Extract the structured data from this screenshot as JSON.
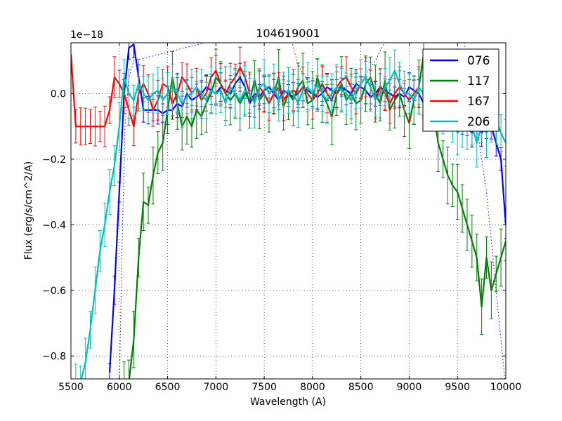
{
  "chart_data": {
    "type": "line",
    "title": "104619001",
    "xlabel": "Wavelength (A)",
    "ylabel": "Flux (erg/s/cm^2/A)",
    "offset_label": "1e−18",
    "xlim": [
      5500,
      10000
    ],
    "ylim": [
      -0.87,
      0.155
    ],
    "xticks": [
      5500,
      6000,
      6500,
      7000,
      7500,
      8000,
      8500,
      9000,
      9500,
      10000
    ],
    "yticks": [
      0.0,
      -0.2,
      -0.4,
      -0.6,
      -0.8
    ],
    "ytick_labels": [
      "0.0",
      "−0.2",
      "−0.4",
      "−0.6",
      "−0.8"
    ],
    "grid": true,
    "legend_position": "top-right",
    "series": [
      {
        "name": "076",
        "color": "#0000ff",
        "x": [
          5900,
          5950,
          6000,
          6050,
          6100,
          6150,
          6200,
          6250,
          6300,
          6350,
          6400,
          6450,
          6500,
          6550,
          6600,
          6650,
          6700,
          6750,
          6800,
          6850,
          6900,
          6950,
          7000,
          7050,
          7100,
          7150,
          7200,
          7250,
          7300,
          7350,
          7400,
          7450,
          7500,
          7550,
          7600,
          7650,
          7700,
          7750,
          7800,
          7850,
          7900,
          7950,
          8000,
          8050,
          8100,
          8150,
          8200,
          8250,
          8300,
          8350,
          8400,
          8450,
          8500,
          8550,
          8600,
          8650,
          8700,
          8750,
          8800,
          8850,
          8900,
          8950,
          9000,
          9050,
          9100,
          9150,
          9200,
          9250,
          9300,
          9350,
          9400,
          9450,
          9500,
          9550,
          9600,
          9650,
          9700,
          9750,
          9800,
          9850,
          9900,
          9950,
          10000
        ],
        "y": [
          -0.85,
          -0.6,
          -0.3,
          0.0,
          0.14,
          0.15,
          0.05,
          -0.05,
          -0.05,
          -0.05,
          -0.05,
          -0.06,
          -0.05,
          -0.05,
          -0.03,
          -0.04,
          0.0,
          -0.02,
          -0.01,
          0.0,
          0.02,
          0.01,
          0.0,
          0.02,
          0.01,
          0.0,
          0.03,
          0.05,
          0.02,
          -0.03,
          0.0,
          -0.01,
          0.01,
          0.02,
          0.0,
          -0.02,
          0.01,
          0.0,
          -0.01,
          0.0,
          0.02,
          0.01,
          0.0,
          -0.01,
          0.0,
          0.02,
          0.01,
          0.0,
          0.02,
          0.01,
          0.0,
          0.03,
          0.02,
          0.01,
          -0.01,
          0.0,
          0.02,
          0.01,
          0.0,
          -0.01,
          0.0,
          -0.01,
          0.02,
          0.01,
          0.0,
          -0.03,
          -0.04,
          -0.05,
          -0.03,
          -0.05,
          -0.06,
          -0.07,
          -0.06,
          -0.08,
          -0.1,
          -0.12,
          -0.1,
          -0.12,
          -0.1,
          -0.1,
          -0.15,
          -0.2,
          -0.4
        ],
        "err": 0.035
      },
      {
        "name": "117",
        "color": "#008000",
        "x": [
          6050,
          6100,
          6150,
          6200,
          6250,
          6300,
          6350,
          6400,
          6450,
          6500,
          6550,
          6600,
          6650,
          6700,
          6750,
          6800,
          6850,
          6900,
          6950,
          7000,
          7050,
          7100,
          7150,
          7200,
          7250,
          7300,
          7350,
          7400,
          7450,
          7500,
          7550,
          7600,
          7650,
          7700,
          7750,
          7800,
          7850,
          7900,
          7950,
          8000,
          8050,
          8100,
          8150,
          8200,
          8250,
          8300,
          8350,
          8400,
          8450,
          8500,
          8550,
          8600,
          8650,
          8700,
          8750,
          8800,
          8850,
          8900,
          8950,
          9000,
          9050,
          9100,
          9150,
          9200,
          9250,
          9300,
          9350,
          9400,
          9450,
          9500,
          9550,
          9600,
          9650,
          9700,
          9750,
          9800,
          9850,
          9900,
          9950,
          10000
        ],
        "y": [
          -0.9,
          -0.88,
          -0.75,
          -0.5,
          -0.33,
          -0.34,
          -0.25,
          -0.18,
          -0.15,
          -0.05,
          0.05,
          -0.03,
          -0.1,
          -0.07,
          -0.1,
          -0.05,
          -0.07,
          -0.03,
          0.0,
          0.05,
          0.03,
          0.0,
          -0.02,
          0.0,
          -0.03,
          0.0,
          -0.02,
          0.04,
          -0.02,
          0.0,
          -0.03,
          0.0,
          0.05,
          -0.04,
          0.0,
          -0.02,
          0.02,
          0.04,
          -0.03,
          -0.02,
          0.05,
          0.0,
          -0.03,
          -0.07,
          0.0,
          0.03,
          -0.02,
          0.0,
          -0.03,
          -0.02,
          0.03,
          0.05,
          0.0,
          -0.03,
          0.04,
          -0.05,
          -0.02,
          0.0,
          -0.05,
          -0.09,
          -0.02,
          0.02,
          0.12,
          0.0,
          -0.05,
          -0.15,
          -0.2,
          -0.25,
          -0.28,
          -0.3,
          -0.35,
          -0.4,
          -0.45,
          -0.5,
          -0.65,
          -0.5,
          -0.6,
          -0.55,
          -0.5,
          -0.45
        ],
        "err": 0.07
      },
      {
        "name": "167",
        "color": "#ff0000",
        "x": [
          5500,
          5550,
          5600,
          5650,
          5700,
          5750,
          5800,
          5850,
          5900,
          5950,
          6000,
          6050,
          6100,
          6150,
          6200,
          6250,
          6300,
          6350,
          6400,
          6450,
          6500,
          6550,
          6600,
          6650,
          6700,
          6750,
          6800,
          6850,
          6900,
          6950,
          7000,
          7050,
          7100,
          7150,
          7200,
          7250,
          7300,
          7350,
          7400,
          7450,
          7500,
          7550,
          7600,
          7650,
          7700,
          7750,
          7800,
          7850,
          7900,
          7950,
          8000,
          8050,
          8100,
          8150,
          8200,
          8250,
          8300,
          8350,
          8400,
          8450,
          8500,
          8550,
          8600,
          8650,
          8700,
          8750,
          8800,
          8850,
          8900,
          8950,
          9000,
          9050,
          9100
        ],
        "y": [
          0.12,
          -0.1,
          -0.1,
          -0.1,
          -0.1,
          -0.1,
          -0.1,
          -0.1,
          -0.05,
          0.05,
          0.03,
          0.0,
          -0.05,
          -0.1,
          0.0,
          0.03,
          0.0,
          -0.05,
          -0.02,
          0.03,
          0.02,
          -0.03,
          0.0,
          0.05,
          0.03,
          0.0,
          0.02,
          -0.02,
          0.0,
          0.05,
          0.07,
          0.03,
          0.0,
          0.03,
          0.05,
          0.08,
          0.05,
          0.0,
          -0.02,
          0.02,
          0.0,
          -0.03,
          0.0,
          0.02,
          -0.02,
          0.0,
          0.01,
          0.0,
          0.02,
          0.0,
          -0.02,
          0.0,
          0.03,
          0.0,
          -0.02,
          0.02,
          0.04,
          0.05,
          0.02,
          0.0,
          0.03,
          0.05,
          0.02,
          -0.02,
          0.02,
          0.0,
          -0.03,
          0.0,
          0.02,
          0.0,
          -0.02,
          0.0,
          0.02
        ],
        "err": 0.05
      },
      {
        "name": "206",
        "color": "#00bfbf",
        "x": [
          5500,
          5550,
          5600,
          5650,
          5700,
          5750,
          5800,
          5850,
          5900,
          5950,
          6000,
          6050,
          6100,
          6150,
          6200,
          6250,
          6300,
          6350,
          6400,
          6450,
          6500,
          6550,
          6600,
          6650,
          6700,
          6750,
          6800,
          6850,
          6900,
          6950,
          7000,
          7050,
          7100,
          7150,
          7200,
          7250,
          7300,
          7350,
          7400,
          7450,
          7500,
          7550,
          7600,
          7650,
          7700,
          7750,
          7800,
          7850,
          7900,
          7950,
          8000,
          8050,
          8100,
          8150,
          8200,
          8250,
          8300,
          8350,
          8400,
          8450,
          8500,
          8550,
          8600,
          8650,
          8700,
          8750,
          8800,
          8850,
          8900,
          8950,
          9000,
          9050,
          9100,
          9150,
          9200,
          9250,
          9300,
          9350,
          9400,
          9450,
          9500,
          9550,
          9600,
          9650,
          9700,
          9750,
          9800,
          9850,
          9900,
          9950,
          10000
        ],
        "y": [
          -0.95,
          -0.9,
          -0.88,
          -0.82,
          -0.72,
          -0.6,
          -0.48,
          -0.4,
          -0.3,
          -0.22,
          -0.1,
          0.05,
          0.0,
          -0.02,
          0.03,
          0.0,
          -0.02,
          0.0,
          0.01,
          -0.02,
          0.0,
          0.02,
          0.0,
          -0.03,
          -0.01,
          0.0,
          0.02,
          0.0,
          -0.02,
          0.01,
          0.0,
          0.01,
          -0.03,
          0.02,
          0.0,
          -0.02,
          0.01,
          0.0,
          -0.03,
          0.02,
          0.03,
          0.0,
          0.02,
          -0.02,
          0.0,
          0.01,
          0.0,
          -0.03,
          0.01,
          0.02,
          0.0,
          0.03,
          0.0,
          -0.02,
          0.0,
          0.02,
          0.01,
          0.0,
          -0.02,
          0.01,
          0.03,
          0.05,
          0.02,
          -0.02,
          0.0,
          0.02,
          0.04,
          0.07,
          0.03,
          0.0,
          0.0,
          -0.02,
          0.02,
          0.0,
          0.0,
          0.0,
          -0.02,
          -0.05,
          -0.05,
          -0.08,
          -0.12,
          -0.1,
          -0.1,
          -0.1,
          -0.15,
          -0.1,
          -0.12,
          -0.1,
          -0.08,
          -0.12,
          -0.15
        ],
        "err": 0.06
      }
    ],
    "model_curve": {
      "name": "076 model (dotted)",
      "color": "#0000ff",
      "x": [
        6000,
        6030,
        6060,
        6100,
        6150,
        7750,
        7800,
        7850,
        7900,
        7950,
        8000,
        8050,
        8100,
        8150,
        8200,
        8250,
        8300,
        8350,
        8400,
        8450,
        8500,
        8550,
        8600,
        8650,
        8700,
        8750,
        8800,
        8850,
        9550,
        9600,
        9650,
        9700,
        9750,
        9800,
        9850,
        9900,
        9950,
        10000
      ],
      "y": [
        -0.9,
        -0.45,
        -0.1,
        0.05,
        0.1,
        0.22,
        0.14,
        0.09,
        0.06,
        0.04,
        0.03,
        0.02,
        0.015,
        0.01,
        0.01,
        0.01,
        0.015,
        0.02,
        0.025,
        0.03,
        0.04,
        0.06,
        0.08,
        0.1,
        0.13,
        0.16,
        0.2,
        0.25,
        0.2,
        0.1,
        0.0,
        -0.1,
        -0.2,
        -0.3,
        -0.45,
        -0.6,
        -0.75,
        -0.9
      ]
    }
  }
}
